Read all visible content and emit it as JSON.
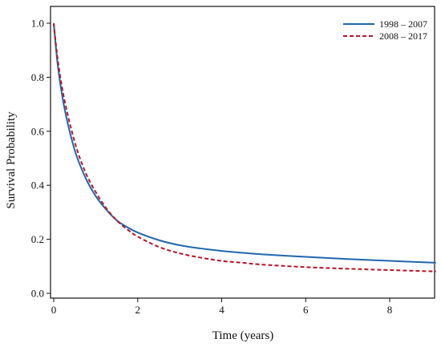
{
  "chart_data": {
    "type": "line",
    "title": "",
    "xlabel": "Time (years)",
    "ylabel": "Survival Probability",
    "xlim": [
      0,
      9.1
    ],
    "ylim": [
      0.0,
      1.05
    ],
    "xticks": [
      0,
      2,
      4,
      6,
      8
    ],
    "yticks": [
      0.0,
      0.2,
      0.4,
      0.6,
      0.8,
      1.0
    ],
    "xtick_labels": [
      "0",
      "2",
      "4",
      "6",
      "8"
    ],
    "ytick_labels": [
      "0.0",
      "0.2",
      "0.4",
      "0.6",
      "0.8",
      "1.0"
    ],
    "grid": false,
    "legend_position": "top-right",
    "series": [
      {
        "name": "1998 – 2007",
        "color": "#2166ac",
        "style": "solid",
        "x": [
          0,
          0.1,
          0.25,
          0.5,
          0.75,
          1.0,
          1.25,
          1.5,
          1.75,
          2.0,
          2.5,
          3.0,
          3.5,
          4.0,
          4.5,
          5.0,
          6.0,
          7.0,
          8.0,
          9.1
        ],
        "y": [
          1.0,
          0.84,
          0.69,
          0.53,
          0.43,
          0.36,
          0.31,
          0.27,
          0.245,
          0.225,
          0.197,
          0.178,
          0.166,
          0.157,
          0.15,
          0.144,
          0.135,
          0.127,
          0.12,
          0.113
        ]
      },
      {
        "name": "2008 – 2017",
        "color": "#b2182b",
        "style": "dashed",
        "x": [
          0,
          0.1,
          0.25,
          0.5,
          0.75,
          1.0,
          1.25,
          1.5,
          1.75,
          2.0,
          2.5,
          3.0,
          3.5,
          4.0,
          4.5,
          5.0,
          6.0,
          7.0,
          8.0,
          9.1
        ],
        "y": [
          1.0,
          0.86,
          0.72,
          0.56,
          0.45,
          0.375,
          0.315,
          0.27,
          0.237,
          0.21,
          0.172,
          0.148,
          0.132,
          0.12,
          0.113,
          0.106,
          0.097,
          0.091,
          0.086,
          0.081
        ]
      }
    ]
  }
}
